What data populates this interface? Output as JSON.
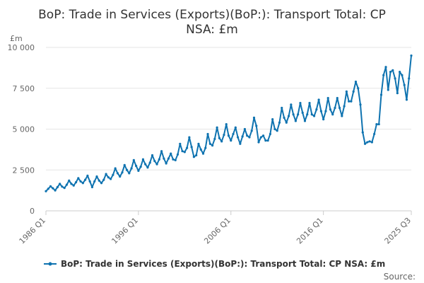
{
  "chart_data": {
    "type": "line",
    "title_lines": [
      "BoP: Trade in Services (Exports)(BoP:): Transport Total: CP",
      "NSA: £m"
    ],
    "unit_label": "£m",
    "y_ticks": [
      "0",
      "2 500",
      "5 000",
      "7 500",
      "10 000"
    ],
    "y_tick_values": [
      0,
      2500,
      5000,
      7500,
      10000
    ],
    "ylim": [
      0,
      10000
    ],
    "x_ticks": [
      "1986 Q1",
      "1996 Q1",
      "2006 Q1",
      "2016 Q1",
      "2025 Q3"
    ],
    "x_tick_index": [
      0,
      40,
      80,
      120,
      158
    ],
    "x_start": "1986 Q1",
    "x_end": "2025 Q3",
    "legend_position": "bottom",
    "grid": true,
    "series": [
      {
        "name": "BoP: Trade in Services (Exports)(BoP:): Transport Total: CP NSA: £m",
        "color": "#0f73b0",
        "values": [
          1200,
          1350,
          1500,
          1380,
          1250,
          1450,
          1650,
          1480,
          1400,
          1600,
          1850,
          1650,
          1550,
          1750,
          2000,
          1800,
          1700,
          1900,
          2150,
          1800,
          1450,
          1800,
          2100,
          1850,
          1700,
          1900,
          2250,
          2050,
          1950,
          2200,
          2600,
          2300,
          2100,
          2350,
          2800,
          2500,
          2300,
          2600,
          3100,
          2750,
          2450,
          2700,
          3150,
          2850,
          2650,
          2950,
          3400,
          3050,
          2850,
          3150,
          3650,
          3200,
          2900,
          3200,
          3500,
          3150,
          3100,
          3450,
          4100,
          3650,
          3600,
          3850,
          4500,
          3900,
          3300,
          3400,
          4100,
          3750,
          3500,
          3850,
          4700,
          4100,
          4000,
          4400,
          5100,
          4450,
          4250,
          4650,
          5300,
          4600,
          4300,
          4700,
          5100,
          4500,
          4100,
          4550,
          5000,
          4600,
          4500,
          4900,
          5700,
          5200,
          4200,
          4500,
          4600,
          4300,
          4300,
          4700,
          5600,
          5000,
          4900,
          5400,
          6300,
          5700,
          5400,
          5800,
          6500,
          5900,
          5500,
          5900,
          6600,
          6000,
          5500,
          5900,
          6600,
          5900,
          5800,
          6200,
          6800,
          6100,
          5600,
          6100,
          6900,
          6200,
          5900,
          6300,
          6900,
          6300,
          5800,
          6400,
          7300,
          6700,
          6700,
          7300,
          7900,
          7500,
          6500,
          4800,
          4100,
          4200,
          4250,
          4200,
          4700,
          5300,
          5300,
          7100,
          8300,
          8800,
          7400,
          8500,
          8600,
          8100,
          7200,
          8500,
          8300,
          7700,
          6800,
          8100,
          9500
        ]
      }
    ],
    "source_label": "Source:"
  }
}
